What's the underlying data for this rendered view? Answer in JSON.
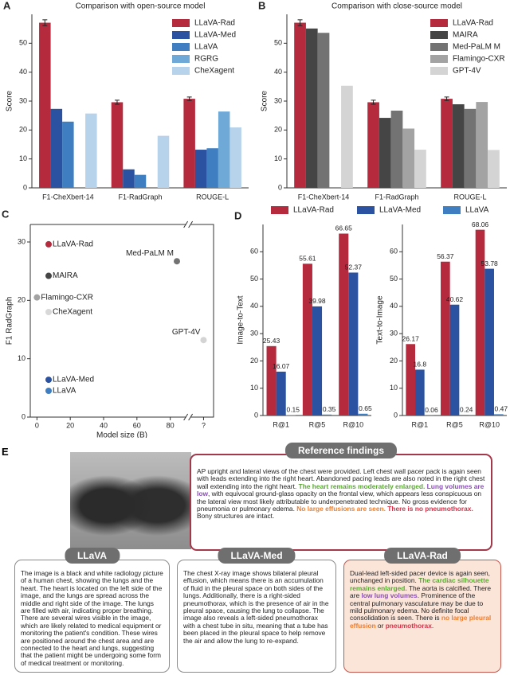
{
  "chart_data": [
    {
      "type": "bar",
      "panel": "A",
      "title": "Comparison with open-source model",
      "ylabel": "Score",
      "categories": [
        "F1-CheXbert-14",
        "F1-RadGraph",
        "ROUGE-L"
      ],
      "series": [
        {
          "name": "LLaVA-Rad",
          "color": "#b52a3c",
          "values": [
            57.1,
            29.6,
            30.8
          ],
          "errors": [
            1.0,
            0.7,
            0.6
          ]
        },
        {
          "name": "LLaVA-Med",
          "color": "#2b52a0",
          "values": [
            27.3,
            6.4,
            13.2
          ]
        },
        {
          "name": "LLaVA",
          "color": "#3f7fc1",
          "values": [
            22.9,
            4.5,
            13.7
          ]
        },
        {
          "name": "RGRG",
          "color": "#6fa9d8",
          "values": [
            null,
            null,
            26.4
          ]
        },
        {
          "name": "CheXagent",
          "color": "#b7d3ec",
          "values": [
            25.7,
            18.0,
            20.9
          ]
        }
      ],
      "ylim": [
        0,
        60
      ],
      "yticks": [
        0,
        10,
        20,
        30,
        40,
        50
      ],
      "legend": "upper right"
    },
    {
      "type": "bar",
      "panel": "B",
      "title": "Comparison with close-source model",
      "ylabel": "Score",
      "categories": [
        "F1-CheXbert-14",
        "F1-RadGraph",
        "ROUGE-L"
      ],
      "series": [
        {
          "name": "LLaVA-Rad",
          "color": "#b52a3c",
          "values": [
            57.1,
            29.6,
            30.8
          ],
          "errors": [
            1.0,
            0.7,
            0.6
          ]
        },
        {
          "name": "MAIRA",
          "color": "#454545",
          "values": [
            55.1,
            24.2,
            28.9
          ]
        },
        {
          "name": "Med-PaLM M",
          "color": "#737373",
          "values": [
            53.6,
            26.7,
            27.3
          ]
        },
        {
          "name": "Flamingo-CXR",
          "color": "#a3a3a3",
          "values": [
            null,
            20.5,
            29.7
          ]
        },
        {
          "name": "GPT-4V",
          "color": "#d4d4d4",
          "values": [
            35.3,
            13.2,
            13.1
          ]
        }
      ],
      "ylim": [
        0,
        60
      ],
      "yticks": [
        0,
        10,
        20,
        30,
        40,
        50
      ],
      "legend": "upper right"
    },
    {
      "type": "scatter",
      "panel": "C",
      "xlabel": "Model size (B)",
      "ylabel": "F1 RadGraph",
      "points": [
        {
          "name": "LLaVA-Rad",
          "x": 7,
          "y": 29.6,
          "color": "#b52a3c"
        },
        {
          "name": "Med-PaLM M",
          "x": 84,
          "y": 26.7,
          "color": "#737373"
        },
        {
          "name": "MAIRA",
          "x": 7,
          "y": 24.2,
          "color": "#454545"
        },
        {
          "name": "Flamingo-CXR",
          "x": 0,
          "y": 20.5,
          "color": "#a3a3a3"
        },
        {
          "name": "CheXagent",
          "x": 7,
          "y": 18.0,
          "color": "#d8d8d8"
        },
        {
          "name": "GPT-4V",
          "x": 100,
          "y": 13.2,
          "color": "#d4d4d4"
        },
        {
          "name": "LLaVA-Med",
          "x": 7,
          "y": 6.4,
          "color": "#2b52a0"
        },
        {
          "name": "LLaVA",
          "x": 7,
          "y": 4.5,
          "color": "#3f7fc1"
        }
      ],
      "xlim": [
        -4,
        106
      ],
      "xticks": [
        0,
        20,
        40,
        60,
        80,
        {
          "value": 100,
          "label": "?"
        }
      ],
      "ylim": [
        0,
        33
      ],
      "yticks": [
        0,
        10,
        20,
        30
      ]
    },
    {
      "type": "bar",
      "panel": "D",
      "ylabel": "Image-to-Text",
      "categories": [
        "R@1",
        "R@5",
        "R@10"
      ],
      "series": [
        {
          "name": "LLaVA-Rad",
          "color": "#b52a3c",
          "values": [
            25.43,
            55.61,
            66.65
          ]
        },
        {
          "name": "LLaVA-Med",
          "color": "#2b52a0",
          "values": [
            16.07,
            39.98,
            52.37
          ]
        },
        {
          "name": "LLaVA",
          "color": "#3f7fc1",
          "values": [
            0.15,
            0.35,
            0.65
          ]
        }
      ],
      "ylim": [
        0,
        70
      ],
      "yticks": [
        0,
        10,
        20,
        30,
        40,
        50,
        60
      ],
      "legend": "top",
      "show_values": true
    },
    {
      "type": "bar",
      "ylabel": "Text-to-Image",
      "categories": [
        "R@1",
        "R@5",
        "R@10"
      ],
      "series": [
        {
          "color": "#b52a3c",
          "values": [
            26.17,
            56.37,
            68.06
          ]
        },
        {
          "color": "#2b52a0",
          "values": [
            16.8,
            40.62,
            53.78
          ]
        },
        {
          "color": "#3f7fc1",
          "values": [
            0.06,
            0.24,
            0.47
          ]
        }
      ],
      "ylim": [
        0,
        70
      ],
      "yticks": [
        0,
        10,
        20,
        30,
        40,
        50,
        60
      ],
      "show_values": true
    }
  ],
  "panel_e": {
    "label": "E",
    "reference": {
      "title": "Reference findings",
      "segments": [
        {
          "text": "AP upright and lateral views of the chest were provided.  Left chest wall pacer pack is again seen with leads extending into the right heart.  Abandoned pacing leads are also noted in the right chest wall extending into the right heart. "
        },
        {
          "text": "The heart remains moderately enlarged.",
          "highlight": "green"
        },
        {
          "text": "  "
        },
        {
          "text": "Lung volumes are low",
          "highlight": "purple"
        },
        {
          "text": ", with equivocal ground-glass opacity on the frontal view, which appears less conspicuous on the lateral view most likely attributable to underpenetrated technique.  No gross evidence for pneumonia or pulmonary edema.  "
        },
        {
          "text": "No large effusions are seen.",
          "highlight": "orange"
        },
        {
          "text": "  "
        },
        {
          "text": "There is no pneumothorax.",
          "highlight": "red"
        },
        {
          "text": "  Bony structures are intact."
        }
      ]
    },
    "outputs": [
      {
        "title": "LLaVA",
        "segments": [
          {
            "text": "The image is a black and white radiology picture of a human chest, showing the lungs and the heart. The heart is located on the left side of the image, and the lungs are spread across the middle and right side of the image. The lungs are filled with air, indicating proper breathing. There are several wires visible in the image, which are likely related to medical equipment or monitoring the patient's condition. These wires are positioned around the chest area and are connected to the heart and lungs, suggesting that the patient might be undergoing some form of medical treatment or monitoring."
          }
        ]
      },
      {
        "title": "LLaVA-Med",
        "segments": [
          {
            "text": "The chest X-ray image shows bilateral pleural effusion, which means there is an accumulation of fluid in the pleural space on both sides of the lungs. Additionally, there is a right-sided pneumothorax, which is the presence of air in the pleural space, causing the lung to collapse. The image also reveals a left-sided pneumothorax with a chest tube in situ, meaning that a tube has been placed in the pleural space to help remove the air and allow the lung to re-expand."
          }
        ]
      },
      {
        "title": "LLaVA-Rad",
        "segments": [
          {
            "text": "Dual-lead left-sided pacer device is again seen, unchanged in position.  "
          },
          {
            "text": "The cardiac silhouette remains enlarged.",
            "highlight": "green"
          },
          {
            "text": "  The aorta is calcified.  There are "
          },
          {
            "text": "low lung volumes",
            "highlight": "purple"
          },
          {
            "text": ".  Prominence of the central pulmonary vasculature may be due to mild pulmonary edema.  No definite focal consolidation is seen.  There is "
          },
          {
            "text": "no large pleural effusion",
            "highlight": "orange"
          },
          {
            "text": " or "
          },
          {
            "text": "pneumothorax",
            "highlight": "red"
          },
          {
            "text": "."
          }
        ]
      }
    ]
  }
}
